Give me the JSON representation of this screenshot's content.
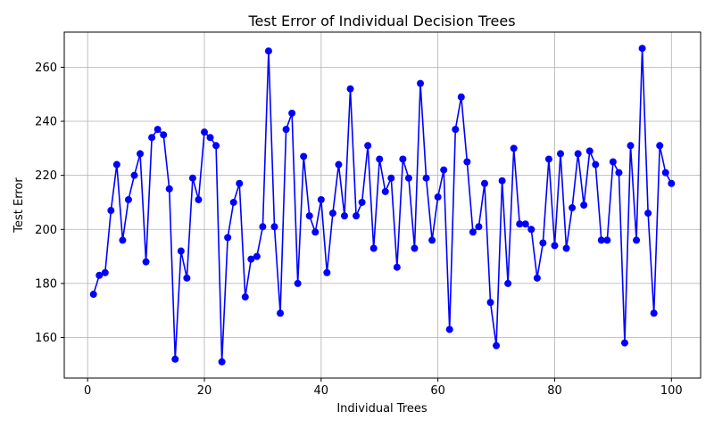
{
  "chart_data": {
    "type": "line",
    "title": "Test Error of Individual Decision Trees",
    "xlabel": "Individual Trees",
    "ylabel": "Test Error",
    "xlim": [
      -4,
      105
    ],
    "ylim": [
      145,
      273
    ],
    "xticks": [
      0,
      20,
      40,
      60,
      80,
      100
    ],
    "yticks": [
      160,
      180,
      200,
      220,
      240,
      260
    ],
    "grid": true,
    "marker": "circle",
    "color": "#0000ff",
    "series": [
      {
        "x": [
          1,
          2,
          3,
          4,
          5,
          6,
          7,
          8,
          9,
          10,
          11,
          12,
          13,
          14,
          15,
          16,
          17,
          18,
          19,
          20,
          21,
          22,
          23,
          24,
          25,
          26,
          27,
          28,
          29,
          30,
          31,
          32,
          33,
          34,
          35,
          36,
          37,
          38,
          39,
          40,
          41,
          42,
          43,
          44,
          45,
          46,
          47,
          48,
          49,
          50,
          51,
          52,
          53,
          54,
          55,
          56,
          57,
          58,
          59,
          60,
          61,
          62,
          63,
          64,
          65,
          66,
          67,
          68,
          69,
          70,
          71,
          72,
          73,
          74,
          75,
          76,
          77,
          78,
          79,
          80,
          81,
          82,
          83,
          84,
          85,
          86,
          87,
          88,
          89,
          90,
          91,
          92,
          93,
          94,
          95,
          96,
          97,
          98,
          99,
          100
        ],
        "values": [
          176,
          183,
          184,
          207,
          224,
          196,
          211,
          220,
          228,
          188,
          234,
          237,
          235,
          215,
          152,
          192,
          182,
          219,
          211,
          236,
          234,
          231,
          151,
          197,
          210,
          217,
          175,
          189,
          190,
          201,
          266,
          201,
          169,
          237,
          243,
          180,
          227,
          205,
          199,
          211,
          184,
          206,
          224,
          205,
          252,
          205,
          210,
          231,
          193,
          226,
          214,
          219,
          186,
          226,
          219,
          193,
          254,
          219,
          196,
          212,
          222,
          163,
          237,
          249,
          225,
          199,
          201,
          217,
          173,
          157,
          218,
          180,
          230,
          202,
          202,
          200,
          182,
          195,
          226,
          194,
          228,
          193,
          208,
          228,
          209,
          229,
          224,
          196,
          196,
          225,
          221,
          158,
          231,
          196,
          267,
          206,
          169,
          231,
          221,
          217
        ]
      }
    ]
  }
}
